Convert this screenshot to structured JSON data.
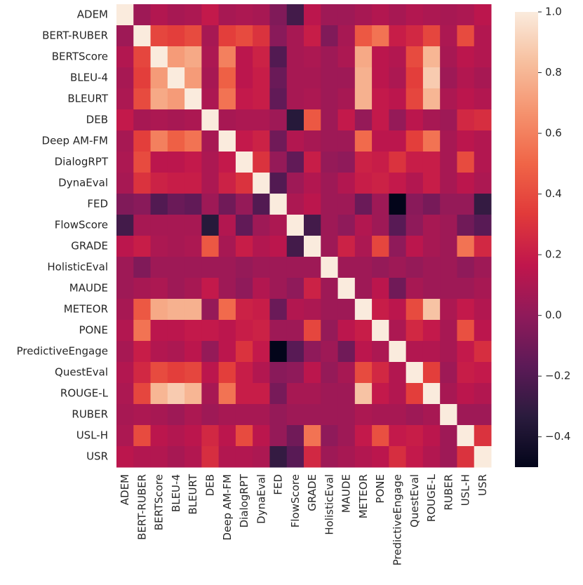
{
  "chart_data": {
    "type": "heatmap",
    "title": "",
    "xlabel": "",
    "ylabel": "",
    "x_categories": [
      "ADEM",
      "BERT-RUBER",
      "BERTScore",
      "BLEU-4",
      "BLEURT",
      "DEB",
      "Deep AM-FM",
      "DialogRPT",
      "DynaEval",
      "FED",
      "FlowScore",
      "GRADE",
      "HolisticEval",
      "MAUDE",
      "METEOR",
      "PONE",
      "PredictiveEngage",
      "QuestEval",
      "ROUGE-L",
      "RUBER",
      "USL-H",
      "USR"
    ],
    "y_categories": [
      "ADEM",
      "BERT-RUBER",
      "BERTScore",
      "BLEU-4",
      "BLEURT",
      "DEB",
      "Deep AM-FM",
      "DialogRPT",
      "DynaEval",
      "FED",
      "FlowScore",
      "GRADE",
      "HolisticEval",
      "MAUDE",
      "METEOR",
      "PONE",
      "PredictiveEngage",
      "QuestEval",
      "ROUGE-L",
      "RUBER",
      "USL-H",
      "USR"
    ],
    "values": [
      [
        1.0,
        0.05,
        0.12,
        0.08,
        0.1,
        0.18,
        0.08,
        0.1,
        0.08,
        -0.05,
        -0.25,
        0.15,
        0.05,
        0.05,
        0.08,
        0.12,
        0.08,
        0.12,
        0.1,
        0.08,
        0.1,
        0.15
      ],
      [
        0.05,
        1.0,
        0.38,
        0.35,
        0.4,
        0.08,
        0.35,
        0.4,
        0.3,
        -0.02,
        0.08,
        0.2,
        -0.05,
        0.08,
        0.45,
        0.55,
        0.2,
        0.25,
        0.38,
        0.1,
        0.4,
        0.12
      ],
      [
        0.12,
        0.38,
        1.0,
        0.7,
        0.75,
        0.1,
        0.6,
        0.15,
        0.22,
        -0.2,
        0.08,
        0.1,
        0.05,
        0.1,
        0.75,
        0.15,
        0.12,
        0.4,
        0.8,
        0.08,
        0.15,
        0.12
      ],
      [
        0.08,
        0.35,
        0.7,
        1.0,
        0.7,
        0.08,
        0.48,
        0.15,
        0.2,
        -0.12,
        0.08,
        0.08,
        0.05,
        0.05,
        0.78,
        0.15,
        0.1,
        0.35,
        0.88,
        0.05,
        0.12,
        0.08
      ],
      [
        0.1,
        0.4,
        0.75,
        0.7,
        1.0,
        0.1,
        0.55,
        0.18,
        0.2,
        -0.15,
        0.08,
        0.1,
        0.05,
        0.08,
        0.78,
        0.18,
        0.15,
        0.38,
        0.8,
        0.1,
        0.15,
        0.12
      ],
      [
        0.18,
        0.08,
        0.1,
        0.08,
        0.1,
        1.0,
        0.08,
        0.1,
        0.1,
        0.05,
        -0.35,
        0.45,
        0.05,
        0.18,
        0.02,
        0.18,
        0.02,
        0.15,
        0.08,
        0.05,
        0.25,
        0.28
      ],
      [
        0.08,
        0.35,
        0.6,
        0.48,
        0.55,
        0.08,
        1.0,
        0.18,
        0.22,
        -0.1,
        0.12,
        0.08,
        0.05,
        0.05,
        0.52,
        0.15,
        0.15,
        0.35,
        0.55,
        0.08,
        0.15,
        0.12
      ],
      [
        0.1,
        0.4,
        0.15,
        0.15,
        0.18,
        0.1,
        0.18,
        1.0,
        0.3,
        0.02,
        -0.15,
        0.2,
        0.02,
        0.0,
        0.22,
        0.2,
        0.3,
        0.2,
        0.2,
        0.08,
        0.4,
        0.12
      ],
      [
        0.08,
        0.3,
        0.22,
        0.2,
        0.2,
        0.1,
        0.22,
        0.3,
        1.0,
        -0.2,
        0.05,
        0.12,
        0.05,
        0.12,
        0.2,
        0.22,
        0.18,
        0.12,
        0.2,
        0.08,
        0.15,
        0.1
      ],
      [
        -0.05,
        -0.02,
        -0.2,
        -0.12,
        -0.15,
        0.05,
        -0.1,
        0.02,
        -0.2,
        1.0,
        0.1,
        0.15,
        0.05,
        0.05,
        -0.12,
        0.05,
        -0.5,
        -0.02,
        -0.08,
        0.02,
        0.02,
        -0.3
      ],
      [
        -0.25,
        0.08,
        0.08,
        0.08,
        0.08,
        -0.35,
        0.12,
        -0.15,
        0.05,
        0.1,
        1.0,
        -0.25,
        0.05,
        0.0,
        0.12,
        0.05,
        -0.18,
        0.0,
        0.08,
        0.05,
        -0.1,
        -0.18
      ],
      [
        0.15,
        0.2,
        0.1,
        0.08,
        0.1,
        0.45,
        0.08,
        0.2,
        0.12,
        0.15,
        -0.25,
        1.0,
        0.05,
        0.22,
        0.1,
        0.38,
        0.0,
        0.15,
        0.08,
        0.05,
        0.55,
        0.25
      ],
      [
        0.05,
        -0.05,
        0.05,
        0.05,
        0.05,
        0.05,
        0.05,
        0.02,
        0.05,
        0.05,
        0.05,
        0.05,
        1.0,
        0.05,
        0.05,
        0.02,
        0.05,
        0.02,
        0.05,
        0.05,
        0.0,
        0.05
      ],
      [
        0.05,
        0.08,
        0.1,
        0.05,
        0.08,
        0.18,
        0.05,
        0.0,
        0.12,
        0.05,
        0.0,
        0.22,
        0.05,
        1.0,
        0.05,
        0.15,
        -0.1,
        0.08,
        0.05,
        0.05,
        0.05,
        0.08
      ],
      [
        0.08,
        0.45,
        0.75,
        0.78,
        0.78,
        0.02,
        0.52,
        0.22,
        0.2,
        -0.12,
        0.12,
        0.1,
        0.05,
        0.05,
        1.0,
        0.2,
        0.15,
        0.4,
        0.85,
        0.1,
        0.18,
        0.12
      ],
      [
        0.12,
        0.55,
        0.15,
        0.15,
        0.18,
        0.18,
        0.15,
        0.2,
        0.22,
        0.05,
        0.05,
        0.38,
        0.02,
        0.15,
        0.2,
        1.0,
        0.1,
        0.25,
        0.18,
        0.08,
        0.42,
        0.15
      ],
      [
        0.08,
        0.2,
        0.12,
        0.1,
        0.15,
        0.02,
        0.15,
        0.3,
        0.18,
        -0.5,
        -0.18,
        0.0,
        0.05,
        -0.1,
        0.15,
        0.1,
        1.0,
        0.12,
        0.12,
        0.08,
        0.18,
        0.28
      ],
      [
        0.12,
        0.25,
        0.4,
        0.35,
        0.38,
        0.15,
        0.35,
        0.2,
        0.12,
        -0.02,
        0.0,
        0.15,
        0.02,
        0.08,
        0.4,
        0.25,
        0.12,
        1.0,
        0.35,
        0.05,
        0.2,
        0.18
      ],
      [
        0.1,
        0.38,
        0.8,
        0.88,
        0.8,
        0.08,
        0.55,
        0.2,
        0.2,
        -0.08,
        0.08,
        0.08,
        0.05,
        0.05,
        0.85,
        0.18,
        0.12,
        0.35,
        1.0,
        0.08,
        0.15,
        0.12
      ],
      [
        0.08,
        0.1,
        0.08,
        0.05,
        0.1,
        0.05,
        0.08,
        0.08,
        0.08,
        0.02,
        0.05,
        0.05,
        0.05,
        0.05,
        0.1,
        0.08,
        0.08,
        0.05,
        0.08,
        1.0,
        0.05,
        0.05
      ],
      [
        0.1,
        0.4,
        0.15,
        0.12,
        0.15,
        0.25,
        0.15,
        0.4,
        0.15,
        0.02,
        -0.1,
        0.55,
        0.0,
        0.05,
        0.18,
        0.42,
        0.18,
        0.2,
        0.15,
        0.05,
        1.0,
        0.3
      ],
      [
        0.15,
        0.12,
        0.12,
        0.08,
        0.12,
        0.28,
        0.12,
        0.12,
        0.1,
        -0.3,
        -0.18,
        0.25,
        0.05,
        0.08,
        0.12,
        0.15,
        0.28,
        0.18,
        0.12,
        0.05,
        0.3,
        1.0
      ]
    ],
    "colorbar": {
      "vmin": -0.5,
      "vmax": 1.0,
      "ticks": [
        -0.4,
        -0.2,
        0.0,
        0.2,
        0.4,
        0.6,
        0.8,
        1.0
      ],
      "tick_labels": [
        "−0.4",
        "−0.2",
        "0.0",
        "0.2",
        "0.4",
        "0.6",
        "0.8",
        "1.0"
      ],
      "colormap": "rocket",
      "colormap_stops": [
        "#03051a",
        "#2a1b3d",
        "#5c1a57",
        "#8f1a5a",
        "#c0164c",
        "#e13a3a",
        "#f06547",
        "#f5926e",
        "#f7bf9e",
        "#faebdd"
      ]
    },
    "grid": false,
    "legend": "colorbar-right"
  }
}
